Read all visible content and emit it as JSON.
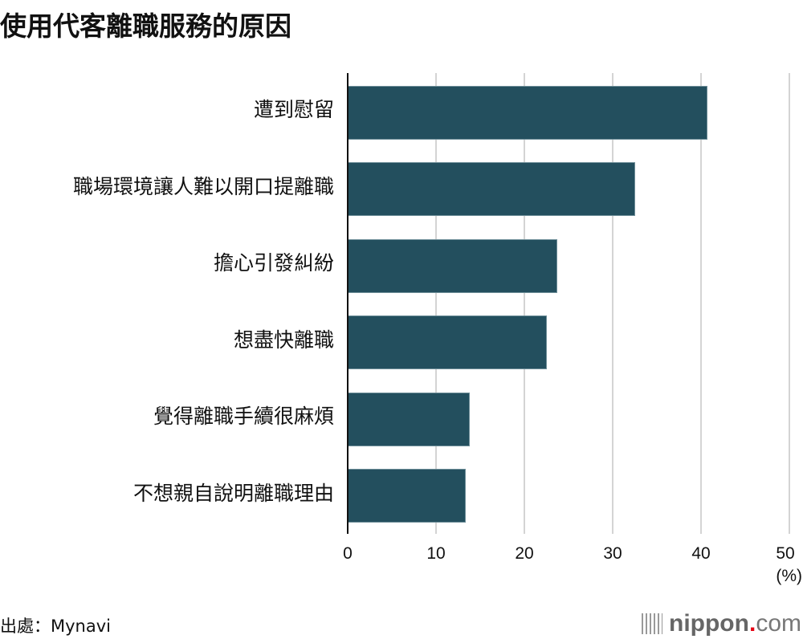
{
  "title": "使用代客離職服務的原因",
  "source": "出處：Mynavi",
  "logo": {
    "name": "nippon",
    "dot": ".",
    "tld": "com"
  },
  "colors": {
    "bar": "#234f5e",
    "grid": "#d4d4d4",
    "axis": "#111111",
    "logo_dot": "#e60012"
  },
  "chart_data": {
    "type": "bar",
    "orientation": "horizontal",
    "title": "使用代客離職服務的原因",
    "categories": [
      "遭到慰留",
      "職場環境讓人難以開口提離職",
      "擔心引發糾紛",
      "想盡快離職",
      "覺得離職手續很麻煩",
      "不想親自說明離職理由"
    ],
    "values": [
      40.7,
      32.5,
      23.7,
      22.5,
      13.8,
      13.4
    ],
    "xlabel": "(%)",
    "ylabel": "",
    "xlim": [
      0,
      50
    ],
    "xticks": [
      "0",
      "10",
      "20",
      "30",
      "40",
      "50"
    ],
    "unit": "(%)",
    "grid": true,
    "legend": "none"
  }
}
